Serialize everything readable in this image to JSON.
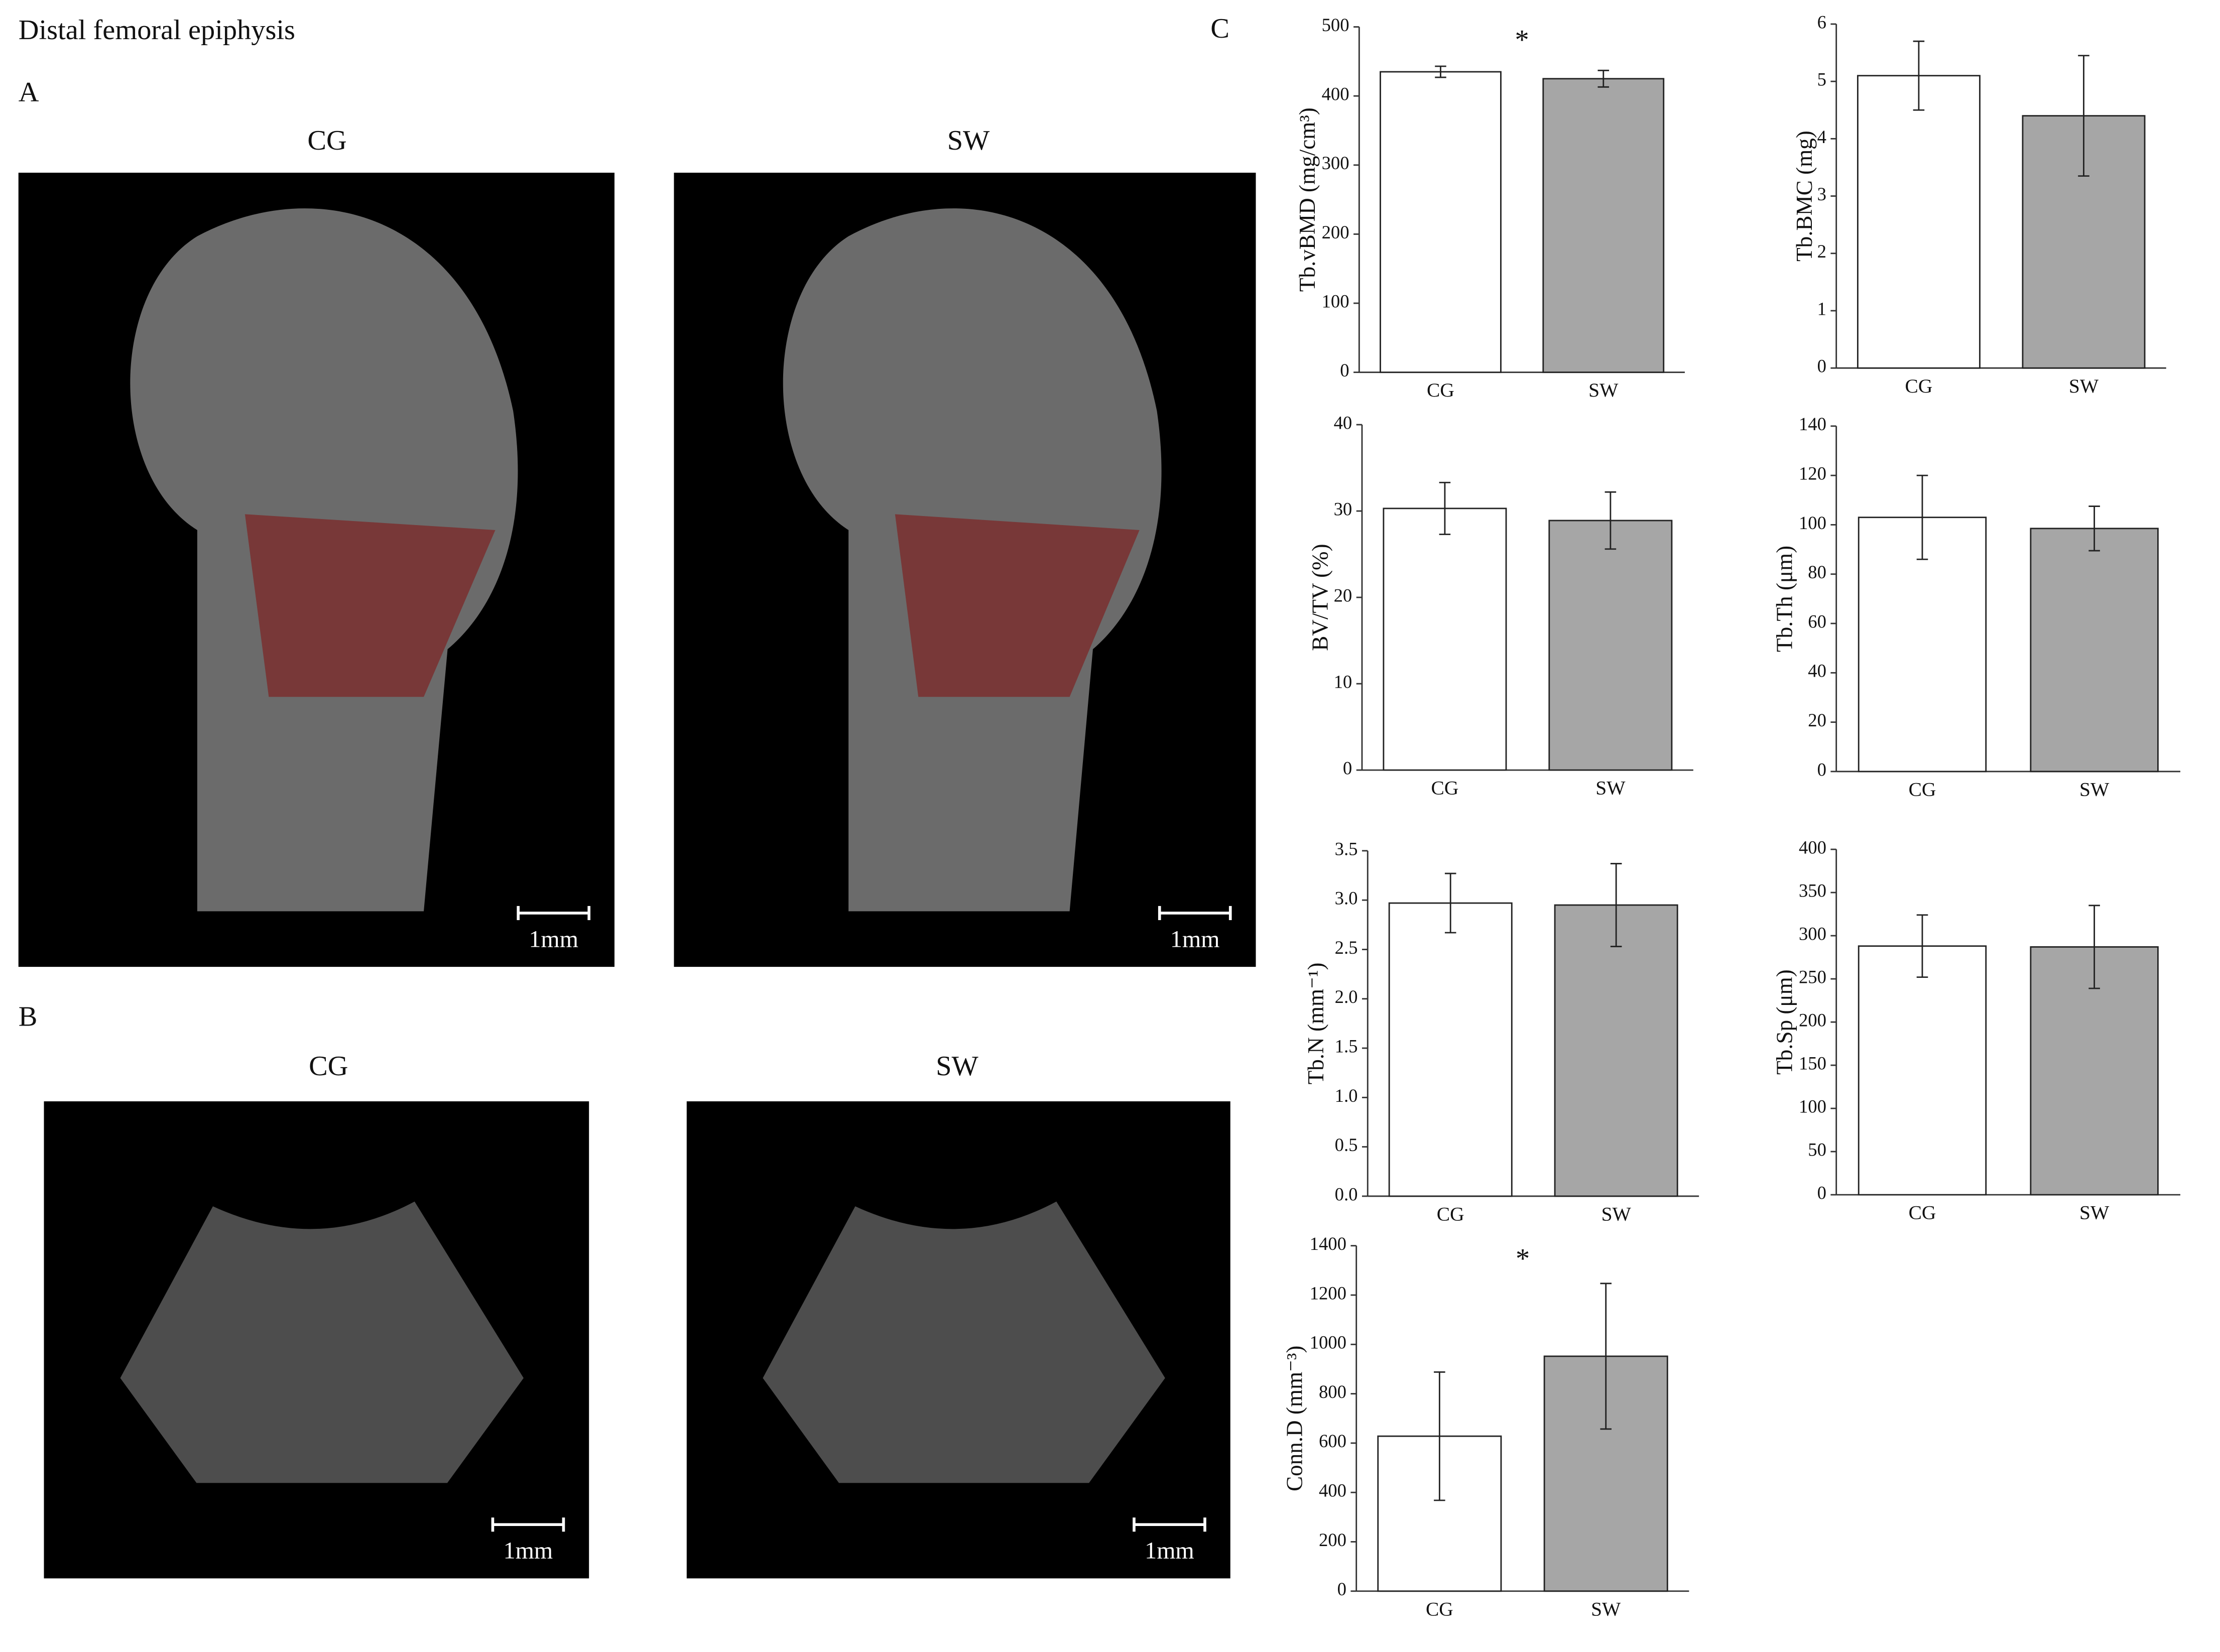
{
  "title": "Distal femoral epiphysis",
  "panels": [
    {
      "label": "A",
      "images": [
        {
          "label": "CG",
          "scale_bar": "1mm"
        },
        {
          "label": "SW",
          "scale_bar": "1mm"
        }
      ]
    },
    {
      "label": "B",
      "images": [
        {
          "label": "CG",
          "scale_bar": "1mm"
        },
        {
          "label": "SW",
          "scale_bar": "1mm"
        }
      ]
    },
    {
      "label": "C"
    }
  ],
  "chart_data": [
    {
      "type": "bar",
      "ylabel": "Tb.vBMD (mg/cm³)",
      "categories": [
        "CG",
        "SW"
      ],
      "values": [
        435,
        425
      ],
      "errors": [
        8,
        12
      ],
      "colors": [
        "#ffffff",
        "#a6a6a6"
      ],
      "ylim": [
        0,
        500
      ],
      "yticks": [
        0,
        100,
        200,
        300,
        400,
        500
      ],
      "annotation": "*"
    },
    {
      "type": "bar",
      "ylabel": "Tb.BMC (mg)",
      "categories": [
        "CG",
        "SW"
      ],
      "values": [
        5.1,
        4.4
      ],
      "errors": [
        0.6,
        1.05
      ],
      "colors": [
        "#ffffff",
        "#a6a6a6"
      ],
      "ylim": [
        0,
        6
      ],
      "yticks": [
        0,
        1,
        2,
        3,
        4,
        5,
        6
      ]
    },
    {
      "type": "bar",
      "ylabel": "BV/TV (%)",
      "categories": [
        "CG",
        "SW"
      ],
      "values": [
        30.3,
        28.9
      ],
      "errors": [
        3,
        3.3
      ],
      "colors": [
        "#ffffff",
        "#a6a6a6"
      ],
      "ylim": [
        0,
        40
      ],
      "yticks": [
        0,
        10,
        20,
        30,
        40
      ]
    },
    {
      "type": "bar",
      "ylabel": "Tb.Th (μm)",
      "categories": [
        "CG",
        "SW"
      ],
      "values": [
        103,
        98.5
      ],
      "errors": [
        17,
        9
      ],
      "colors": [
        "#ffffff",
        "#a6a6a6"
      ],
      "ylim": [
        0,
        140
      ],
      "yticks": [
        0,
        20,
        40,
        60,
        80,
        100,
        120,
        140
      ]
    },
    {
      "type": "bar",
      "ylabel": "Tb.N (mm⁻¹)",
      "categories": [
        "CG",
        "SW"
      ],
      "values": [
        2.97,
        2.95
      ],
      "errors": [
        0.3,
        0.42
      ],
      "colors": [
        "#ffffff",
        "#a6a6a6"
      ],
      "ylim": [
        0,
        3.5
      ],
      "yticks": [
        {
          "value": 0,
          "label": "0.0"
        },
        0.5,
        {
          "value": 1,
          "label": "1.0"
        },
        1.5,
        {
          "value": 2,
          "label": "2.0"
        },
        2.5,
        {
          "value": 3,
          "label": "3.0"
        },
        3.5
      ]
    },
    {
      "type": "bar",
      "ylabel": "Tb.Sp (μm)",
      "categories": [
        "CG",
        "SW"
      ],
      "values": [
        288,
        287
      ],
      "errors": [
        36,
        48
      ],
      "colors": [
        "#ffffff",
        "#a6a6a6"
      ],
      "ylim": [
        0,
        400
      ],
      "yticks": [
        0,
        50,
        100,
        150,
        200,
        250,
        300,
        350,
        400
      ]
    },
    {
      "type": "bar",
      "ylabel": "Conn.D (mm⁻³)",
      "categories": [
        "CG",
        "SW"
      ],
      "values": [
        628,
        952
      ],
      "errors": [
        260,
        295
      ],
      "colors": [
        "#ffffff",
        "#a6a6a6"
      ],
      "ylim": [
        0,
        1400
      ],
      "yticks": [
        0,
        200,
        400,
        600,
        800,
        1000,
        1200,
        1400
      ],
      "annotation": "*"
    }
  ]
}
